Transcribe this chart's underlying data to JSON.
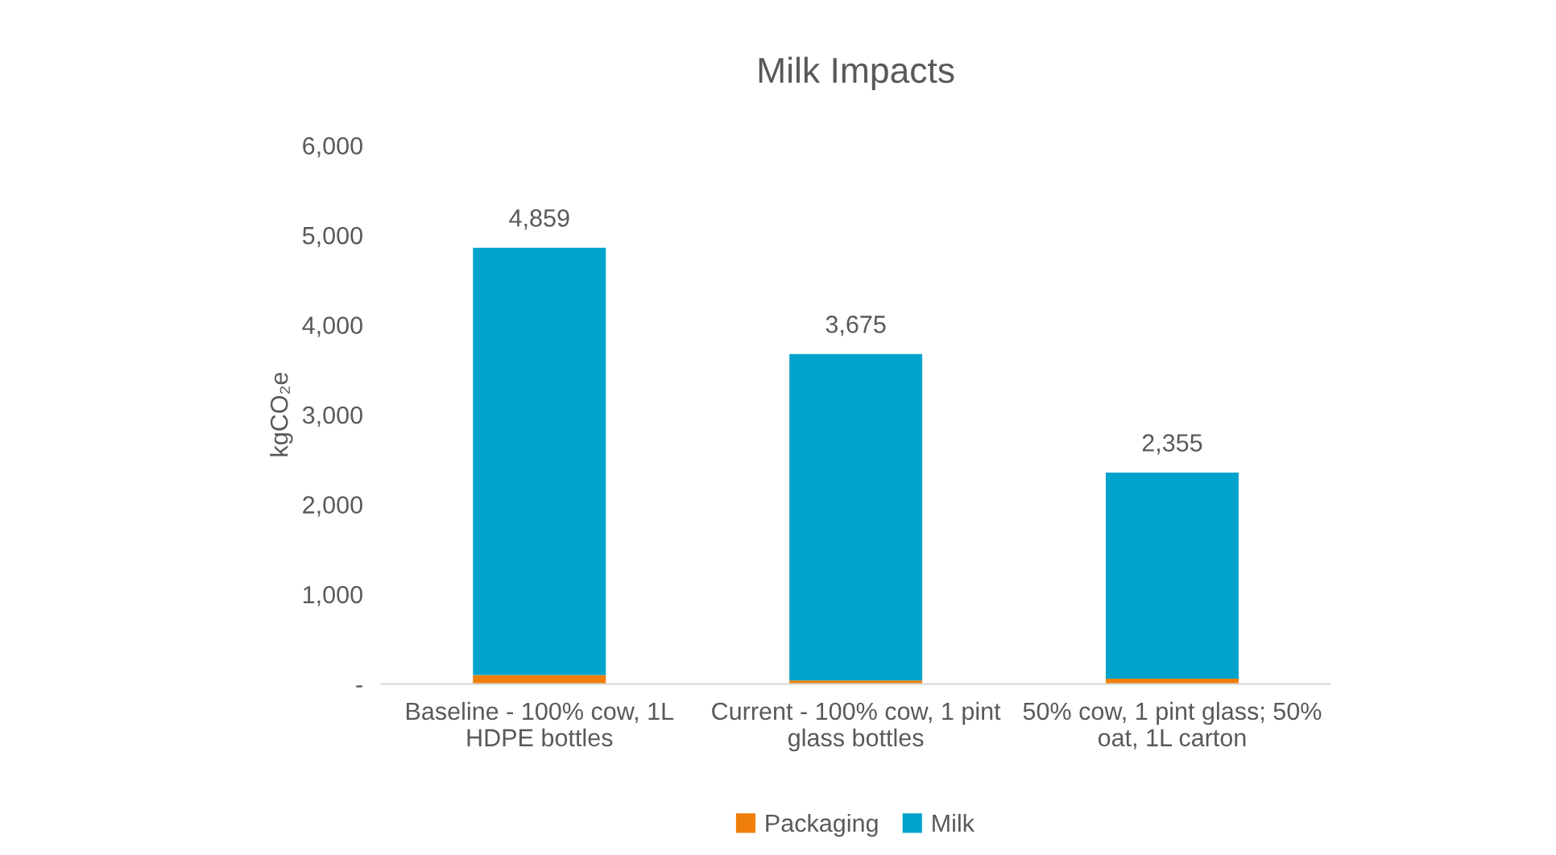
{
  "chart_data": {
    "type": "bar",
    "title": "Milk Impacts",
    "ylabel": "kgCO₂e",
    "categories": [
      "Baseline - 100% cow, 1L HDPE bottles",
      "Current - 100% cow, 1 pint glass bottles",
      "50% cow, 1 pint glass; 50% oat, 1L carton"
    ],
    "stacked": true,
    "series": [
      {
        "name": "Packaging",
        "color": "#f07f09",
        "values": [
          100,
          40,
          60
        ]
      },
      {
        "name": "Milk",
        "color": "#00a3cb",
        "values": [
          4759,
          3635,
          2295
        ]
      }
    ],
    "totals": [
      "4,859",
      "3,675",
      "2,355"
    ],
    "ylim": [
      0,
      6000
    ],
    "yticks": [
      {
        "value": 0,
        "label": "-"
      },
      {
        "value": 1000,
        "label": "1,000"
      },
      {
        "value": 2000,
        "label": "2,000"
      },
      {
        "value": 3000,
        "label": "3,000"
      },
      {
        "value": 4000,
        "label": "4,000"
      },
      {
        "value": 5000,
        "label": "5,000"
      },
      {
        "value": 6000,
        "label": "6,000"
      }
    ],
    "grid": false,
    "legend": "bottom"
  }
}
